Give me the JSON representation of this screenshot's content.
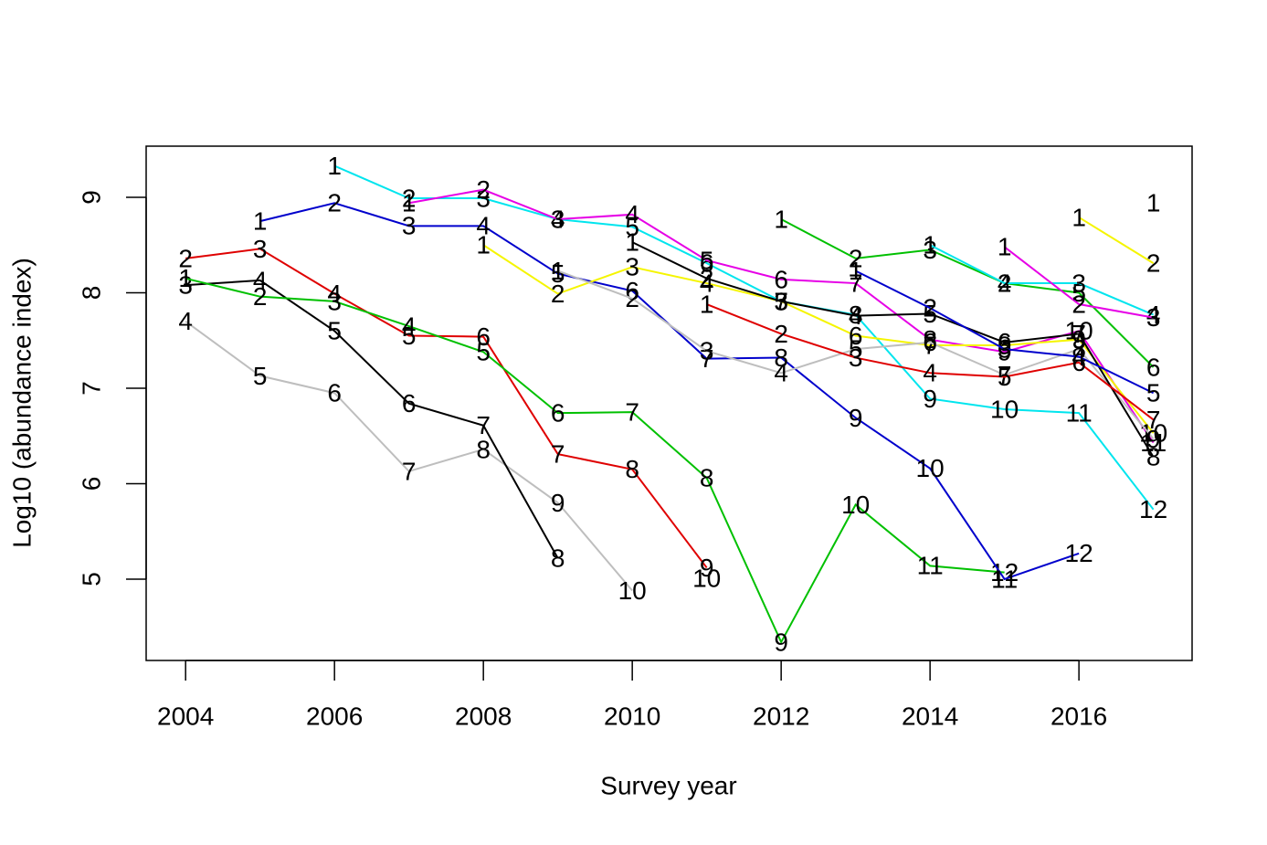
{
  "chart_data": {
    "type": "line",
    "x_label": "Survey year",
    "y_label": "Log10 (abundance index)",
    "xlim": [
      2003.47,
      2017.52
    ],
    "xticks": [
      2004,
      2006,
      2008,
      2010,
      2012,
      2014,
      2016
    ],
    "ylim": [
      4.148,
      9.536
    ],
    "yticks": [
      5,
      6,
      7,
      8,
      9
    ],
    "series": [
      {
        "color": "#bebebe",
        "x": [
          2004,
          2005,
          2006,
          2007,
          2008,
          2009,
          2010
        ],
        "values": [
          7.7,
          7.13,
          6.95,
          6.13,
          6.36,
          5.8,
          4.88
        ],
        "labels": [
          4,
          5,
          6,
          7,
          8,
          9,
          10
        ]
      },
      {
        "color": "#000000",
        "x": [
          2004,
          2005,
          2006,
          2007,
          2008,
          2009,
          2010,
          2011
        ],
        "values": [
          8.08,
          8.13,
          7.6,
          6.84,
          6.61,
          5.22,
          null,
          5.01
        ],
        "labels": [
          3,
          4,
          5,
          6,
          7,
          8,
          null,
          10
        ]
      },
      {
        "color": "#df0000",
        "x": [
          2004,
          2005,
          2006,
          2007,
          2008,
          2009,
          2010,
          2011
        ],
        "values": [
          8.36,
          8.46,
          7.99,
          7.55,
          7.54,
          6.31,
          6.15,
          5.12
        ],
        "labels": [
          2,
          3,
          4,
          5,
          6,
          7,
          8,
          9
        ]
      },
      {
        "color": "#00c000",
        "x": [
          2004,
          2005,
          2006,
          2007,
          2008,
          2009,
          2010,
          2011,
          2012,
          2013,
          2014,
          2015
        ],
        "values": [
          8.15,
          7.96,
          7.91,
          7.65,
          7.38,
          6.74,
          6.75,
          6.06,
          4.34,
          5.78,
          5.14,
          5.07
        ],
        "labels": [
          1,
          2,
          3,
          4,
          5,
          6,
          7,
          8,
          9,
          10,
          11,
          12
        ]
      },
      {
        "color": "#0000cc",
        "x": [
          2005,
          2006,
          2007,
          2008,
          2009,
          2010,
          2011,
          2012,
          2013,
          2014,
          2015,
          2016
        ],
        "values": [
          8.75,
          8.94,
          8.7,
          8.7,
          8.2,
          8.02,
          7.31,
          7.32,
          6.69,
          6.16,
          5.0,
          5.27
        ],
        "labels": [
          1,
          2,
          3,
          4,
          5,
          6,
          7,
          8,
          9,
          10,
          11,
          12
        ]
      },
      {
        "color": "#00e5ee",
        "x": [
          2006,
          2007,
          2008,
          2009,
          2010,
          2011,
          2012,
          2013,
          2014,
          2015,
          2016,
          2017
        ],
        "values": [
          9.33,
          8.99,
          8.99,
          8.77,
          8.69,
          8.31,
          7.91,
          7.77,
          6.89,
          6.78,
          6.74,
          5.73
        ],
        "labels": [
          1,
          2,
          3,
          4,
          5,
          6,
          7,
          8,
          9,
          10,
          11,
          12
        ]
      },
      {
        "color": "#e600e6",
        "x": [
          2007,
          2008,
          2009,
          2010,
          2011,
          2012,
          2013,
          2014,
          2015,
          2016,
          2017
        ],
        "values": [
          8.94,
          9.08,
          8.77,
          8.82,
          8.34,
          8.14,
          8.1,
          7.51,
          7.38,
          7.6,
          6.43
        ],
        "labels": [
          1,
          2,
          3,
          4,
          5,
          6,
          7,
          8,
          9,
          10,
          11
        ]
      },
      {
        "color": "#f5f500",
        "x": [
          2008,
          2009,
          2010,
          2011,
          2012,
          2013,
          2014,
          2015,
          2016,
          2017
        ],
        "values": [
          8.5,
          7.99,
          8.27,
          8.1,
          7.91,
          7.55,
          7.45,
          7.45,
          7.51,
          6.53
        ],
        "labels": [
          1,
          2,
          3,
          4,
          5,
          6,
          7,
          8,
          9,
          10
        ]
      },
      {
        "color": "#bebebe",
        "x": [
          2009,
          2010,
          2011,
          2012,
          2013,
          2014,
          2015,
          2016,
          2017
        ],
        "values": [
          8.23,
          7.94,
          7.39,
          7.16,
          7.41,
          7.48,
          7.14,
          7.41,
          6.47
        ],
        "labels": [
          1,
          2,
          3,
          4,
          5,
          6,
          7,
          8,
          9
        ]
      },
      {
        "color": "#000000",
        "x": [
          2010,
          2011,
          2012,
          2013,
          2014,
          2015,
          2016,
          2017
        ],
        "values": [
          8.53,
          8.15,
          7.91,
          7.76,
          7.78,
          7.48,
          7.57,
          6.28
        ],
        "labels": [
          1,
          2,
          3,
          4,
          5,
          6,
          7,
          8
        ]
      },
      {
        "color": "#df0000",
        "x": [
          2011,
          2012,
          2013,
          2014,
          2015,
          2016,
          2017
        ],
        "values": [
          7.88,
          7.57,
          7.32,
          7.16,
          7.12,
          7.27,
          6.67
        ],
        "labels": [
          1,
          2,
          3,
          4,
          5,
          6,
          7
        ]
      },
      {
        "color": "#00c000",
        "x": [
          2012,
          2013,
          2014,
          2015,
          2016,
          2017
        ],
        "values": [
          8.77,
          8.36,
          8.45,
          8.1,
          8.0,
          7.22
        ],
        "labels": [
          1,
          2,
          3,
          4,
          5,
          6
        ]
      },
      {
        "color": "#0000cc",
        "x": [
          2013,
          2014,
          2015,
          2016,
          2017
        ],
        "values": [
          8.23,
          7.84,
          7.41,
          7.33,
          6.95
        ],
        "labels": [
          1,
          2,
          3,
          4,
          5
        ]
      },
      {
        "color": "#00e5ee",
        "x": [
          2014,
          2015,
          2016,
          2017
        ],
        "values": [
          8.5,
          8.1,
          8.1,
          7.77
        ],
        "labels": [
          1,
          2,
          3,
          4
        ]
      },
      {
        "color": "#e600e6",
        "x": [
          2015,
          2016,
          2017
        ],
        "values": [
          8.48,
          7.88,
          7.74
        ],
        "labels": [
          1,
          2,
          3
        ]
      },
      {
        "color": "#f5f500",
        "x": [
          2016,
          2017
        ],
        "values": [
          8.79,
          8.31
        ],
        "labels": [
          1,
          2
        ]
      },
      {
        "color": "#bebebe",
        "x": [
          2017
        ],
        "values": [
          8.94
        ],
        "labels": [
          1
        ]
      }
    ]
  }
}
